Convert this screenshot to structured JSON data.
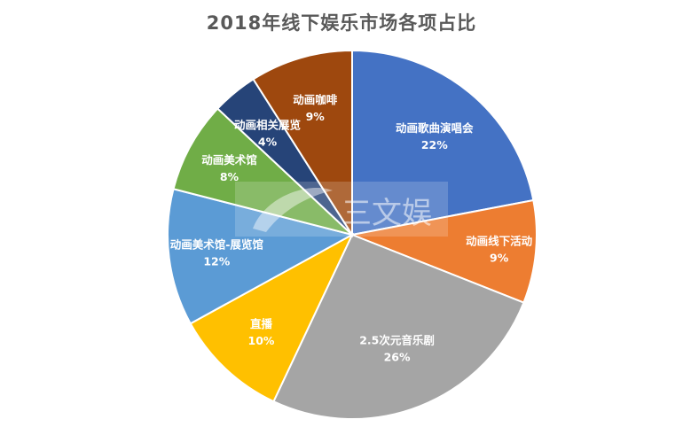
{
  "chart_data": {
    "type": "pie",
    "title": "2018年线下娱乐市场各项占比",
    "slices": [
      {
        "label": "动画歌曲演唱会",
        "value": 22,
        "value_label": "22%",
        "color": "#4472C4"
      },
      {
        "label": "动画线下活动",
        "value": 9,
        "value_label": "9%",
        "color": "#ED7D31"
      },
      {
        "label": "2.5次元音乐剧",
        "value": 26,
        "value_label": "26%",
        "color": "#A5A5A5"
      },
      {
        "label": "直播",
        "value": 10,
        "value_label": "10%",
        "color": "#FFC000"
      },
      {
        "label": "动画美术馆-展览馆",
        "value": 12,
        "value_label": "12%",
        "color": "#5B9BD5"
      },
      {
        "label": "动画美术馆",
        "value": 8,
        "value_label": "8%",
        "color": "#70AD47"
      },
      {
        "label": "动画相关展览",
        "value": 4,
        "value_label": "4%",
        "color": "#264478"
      },
      {
        "label": "动画咖啡",
        "value": 9,
        "value_label": "9%",
        "color": "#9E480E"
      }
    ]
  },
  "watermark": {
    "text": "三文娱"
  }
}
